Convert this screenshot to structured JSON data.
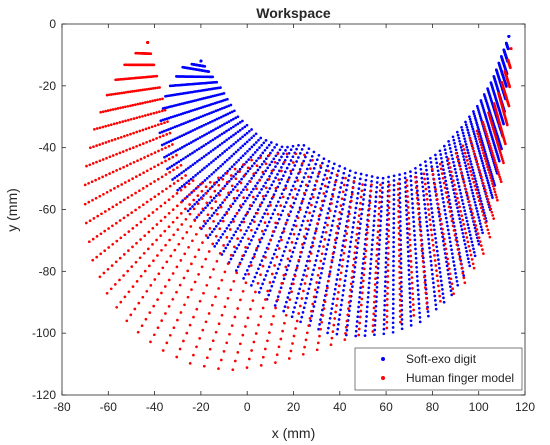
{
  "chart_data": {
    "type": "scatter",
    "title": "Workspace",
    "xlabel": "x (mm)",
    "ylabel": "y (mm)",
    "xlim": [
      -80,
      120
    ],
    "ylim": [
      -120,
      0
    ],
    "xticks": [
      "-80",
      "-60",
      "-40",
      "-20",
      "0",
      "20",
      "40",
      "60",
      "80",
      "100",
      "120"
    ],
    "yticks": [
      "0",
      "-20",
      "-40",
      "-60",
      "-80",
      "-100",
      "-120"
    ],
    "grid": false,
    "legend_position": "bottom-right",
    "series": [
      {
        "name": "Soft-exo digit",
        "color": "#0000ff",
        "marker": "point",
        "region_boundary": {
          "outer": [
            [
              113,
              -4
            ],
            [
              112,
              -20
            ],
            [
              110,
              -40
            ],
            [
              105,
              -60
            ],
            [
              98,
              -76
            ],
            [
              88,
              -88
            ],
            [
              76,
              -96
            ],
            [
              62,
              -100
            ],
            [
              48,
              -101
            ],
            [
              35,
              -100
            ],
            [
              22,
              -96
            ],
            [
              10,
              -90
            ],
            [
              -2,
              -82
            ],
            [
              -14,
              -72
            ],
            [
              -26,
              -60
            ],
            [
              -35,
              -46
            ],
            [
              -38,
              -34
            ],
            [
              -35,
              -22
            ],
            [
              -28,
              -14
            ],
            [
              -20,
              -12
            ]
          ],
          "inner": [
            [
              -20,
              -12
            ],
            [
              -12,
              -20
            ],
            [
              -4,
              -30
            ],
            [
              6,
              -37
            ],
            [
              16,
              -40
            ],
            [
              24,
              -39
            ],
            [
              34,
              -44
            ],
            [
              46,
              -48
            ],
            [
              58,
              -50
            ],
            [
              70,
              -48
            ],
            [
              82,
              -42
            ],
            [
              92,
              -34
            ],
            [
              100,
              -26
            ],
            [
              106,
              -18
            ],
            [
              110,
              -10
            ],
            [
              113,
              -4
            ]
          ]
        }
      },
      {
        "name": "Human finger model",
        "color": "#ff0000",
        "marker": "point",
        "region_boundary": {
          "outer": [
            [
              -43,
              -6
            ],
            [
              -52,
              -12
            ],
            [
              -60,
              -22
            ],
            [
              -66,
              -34
            ],
            [
              -70,
              -48
            ],
            [
              -70,
              -62
            ],
            [
              -67,
              -76
            ],
            [
              -60,
              -88
            ],
            [
              -50,
              -98
            ],
            [
              -38,
              -105
            ],
            [
              -24,
              -110
            ],
            [
              -8,
              -112
            ],
            [
              10,
              -110
            ],
            [
              28,
              -106
            ],
            [
              46,
              -101
            ],
            [
              62,
              -98
            ],
            [
              78,
              -92
            ],
            [
              92,
              -86
            ],
            [
              104,
              -72
            ],
            [
              110,
              -50
            ],
            [
              113,
              -28
            ],
            [
              114,
              -8
            ]
          ],
          "inner": [
            [
              114,
              -8
            ],
            [
              108,
              -24
            ],
            [
              100,
              -34
            ],
            [
              90,
              -42
            ],
            [
              78,
              -48
            ],
            [
              64,
              -52
            ],
            [
              50,
              -52
            ],
            [
              36,
              -48
            ],
            [
              24,
              -42
            ],
            [
              12,
              -42
            ],
            [
              2,
              -44
            ],
            [
              -8,
              -48
            ],
            [
              -18,
              -52
            ],
            [
              -26,
              -50
            ],
            [
              -32,
              -40
            ],
            [
              -36,
              -26
            ],
            [
              -40,
              -14
            ],
            [
              -43,
              -6
            ]
          ]
        }
      }
    ]
  }
}
